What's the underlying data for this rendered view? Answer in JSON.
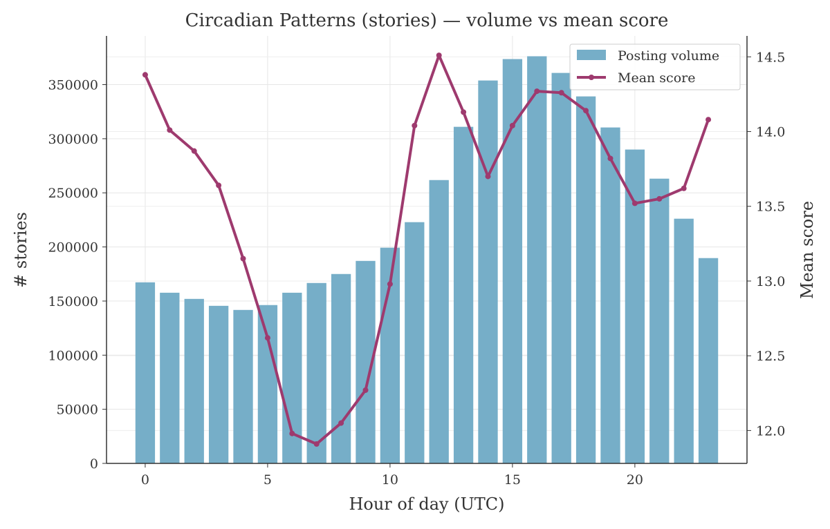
{
  "chart_data": {
    "type": "bar+line",
    "title": "Circadian Patterns (stories) — volume vs mean score",
    "xlabel": "Hour of day (UTC)",
    "ylabel": "# stories",
    "ylabel_right": "Mean score",
    "categories": [
      0,
      1,
      2,
      3,
      4,
      5,
      6,
      7,
      8,
      9,
      10,
      11,
      12,
      13,
      14,
      15,
      16,
      17,
      18,
      19,
      20,
      21,
      22,
      23
    ],
    "x_ticks": [
      0,
      5,
      10,
      15,
      20
    ],
    "y_ticks": [
      0,
      50000,
      100000,
      150000,
      200000,
      250000,
      300000,
      350000
    ],
    "y_right_ticks": [
      12.0,
      12.5,
      13.0,
      13.5,
      14.0,
      14.5
    ],
    "xlim": [
      -1.58,
      24.58
    ],
    "ylim": [
      0,
      395000
    ],
    "ylim_right": [
      11.78,
      14.64
    ],
    "grid": true,
    "legend_position": "top-right",
    "series": [
      {
        "name": "Posting volume",
        "type": "bar",
        "axis": "left",
        "color": "#76aec8",
        "values": [
          167300,
          157700,
          152000,
          145600,
          141800,
          146300,
          157700,
          166700,
          175000,
          187100,
          199300,
          222900,
          261800,
          311000,
          353800,
          373600,
          376200,
          360800,
          339100,
          310400,
          290000,
          263100,
          226100,
          189700
        ]
      },
      {
        "name": "Mean score",
        "type": "line",
        "axis": "right",
        "color": "#9e3a6e",
        "values": [
          14.38,
          14.01,
          13.87,
          13.64,
          13.15,
          12.62,
          11.98,
          11.91,
          12.05,
          12.27,
          12.98,
          14.04,
          14.51,
          14.13,
          13.7,
          14.04,
          14.27,
          14.26,
          14.14,
          13.82,
          13.52,
          13.55,
          13.62,
          14.08
        ]
      }
    ]
  }
}
